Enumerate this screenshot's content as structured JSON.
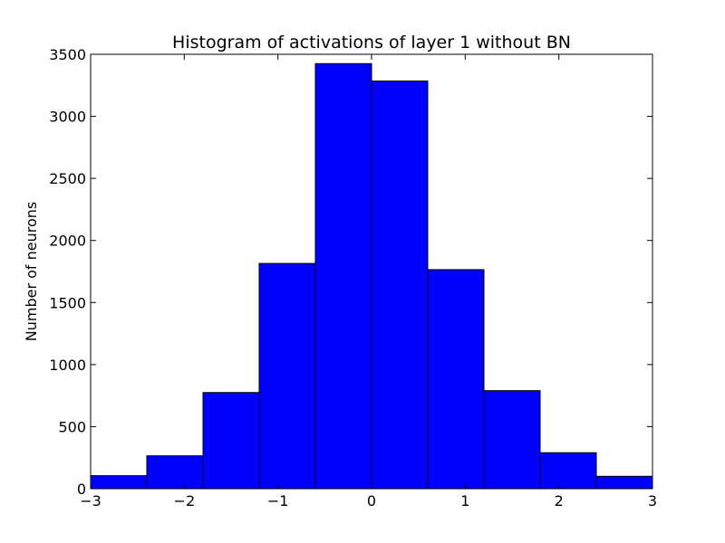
{
  "chart_data": {
    "type": "bar",
    "title": "Histogram of activations of layer 1  without BN",
    "xlabel": "",
    "ylabel": "Number of neurons",
    "xlim": [
      -3,
      3
    ],
    "ylim": [
      0,
      3500
    ],
    "bin_edges": [
      -3,
      -2.4,
      -1.8,
      -1.2,
      -0.6,
      0,
      0.6,
      1.2,
      1.8,
      2.4,
      3
    ],
    "values": [
      105,
      265,
      775,
      1815,
      3425,
      3285,
      1765,
      790,
      290,
      100
    ],
    "x_ticks": [
      -3,
      -2,
      -1,
      0,
      1,
      2,
      3
    ],
    "x_tick_labels": [
      "−3",
      "−2",
      "−1",
      "0",
      "1",
      "2",
      "3"
    ],
    "y_ticks": [
      0,
      500,
      1000,
      1500,
      2000,
      2500,
      3000,
      3500
    ],
    "y_tick_labels": [
      "0",
      "500",
      "1000",
      "1500",
      "2000",
      "2500",
      "3000",
      "3500"
    ],
    "grid": false,
    "colors": {
      "bar_fill": "#0000ff",
      "bar_edge": "#000000",
      "axes": "#000000"
    }
  }
}
